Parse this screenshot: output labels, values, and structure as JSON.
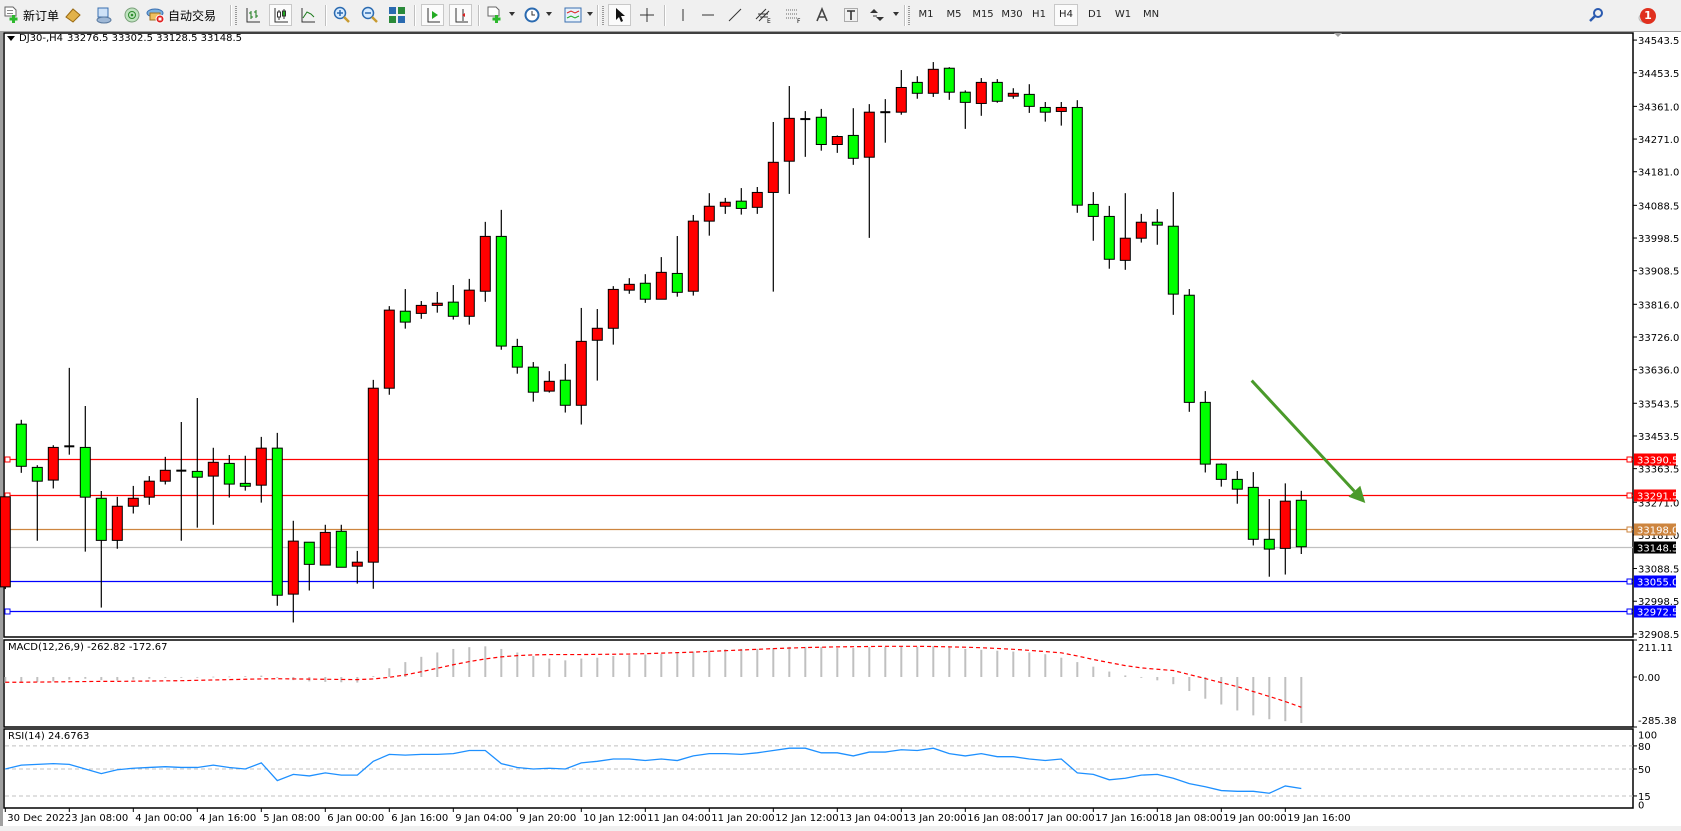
{
  "toolbar": {
    "new_order_label": "新订单",
    "autotrading_label": "自动交易",
    "timeframes": [
      "M1",
      "M5",
      "M15",
      "M30",
      "H1",
      "H4",
      "D1",
      "W1",
      "MN"
    ],
    "active_timeframe": "H4",
    "notification_count": "1",
    "icons": [
      "new-order-icon",
      "market-watch-icon",
      "navigator-icon",
      "signals-icon",
      "autotrading-icon",
      "bar-chart-icon",
      "candlestick-icon",
      "line-chart-icon",
      "zoom-in-icon",
      "zoom-out-icon",
      "tile-windows-icon",
      "autoscroll-icon",
      "chart-shift-icon",
      "indicators-icon",
      "periods-icon",
      "templates-icon",
      "cursor-icon",
      "crosshair-icon",
      "vertical-line-icon",
      "horizontal-line-icon",
      "trendline-icon",
      "equidistant-channel-icon",
      "fibonacci-icon",
      "text-icon",
      "text-label-icon",
      "arrows-icon",
      "search-icon",
      "notifications-icon"
    ]
  },
  "chart": {
    "symbol_header": "DJ30-,H4",
    "ohlc_header": "33276.5 33302.5 33128.5 33148.5"
  },
  "colors": {
    "up_candle": "#ff0000",
    "down_candle": "#00ff00",
    "resistance_line": "#ff0000",
    "mid_line": "#cd853f",
    "bid_line": "#c0c0c0",
    "support_line": "#0000ff",
    "macd_histogram": "#c0c0c0",
    "macd_signal": "#ff0000",
    "rsi_line": "#1e90ff",
    "arrow": "#4a9a2a"
  },
  "chart_data": [
    {
      "type": "candlestick",
      "title": "DJ30-,H4",
      "ylim": [
        32900,
        34563
      ],
      "y_ticks": [
        "34543.5",
        "34453.5",
        "34361.0",
        "34271.0",
        "34181.0",
        "34088.5",
        "33998.5",
        "33908.5",
        "33816.0",
        "33726.0",
        "33636.0",
        "33543.5",
        "33453.5",
        "33363.5",
        "33271.0",
        "33181.0",
        "33088.5",
        "32998.5",
        "32908.5"
      ],
      "x_ticks": [
        {
          "label": "30 Dec 2022",
          "bar": 0
        },
        {
          "label": "3 Jan 08:00",
          "bar": 4
        },
        {
          "label": "4 Jan 00:00",
          "bar": 8
        },
        {
          "label": "4 Jan 16:00",
          "bar": 12
        },
        {
          "label": "5 Jan 08:00",
          "bar": 16
        },
        {
          "label": "6 Jan 00:00",
          "bar": 20
        },
        {
          "label": "6 Jan 16:00",
          "bar": 24
        },
        {
          "label": "9 Jan 04:00",
          "bar": 28
        },
        {
          "label": "9 Jan 20:00",
          "bar": 32
        },
        {
          "label": "10 Jan 12:00",
          "bar": 36
        },
        {
          "label": "11 Jan 04:00",
          "bar": 40
        },
        {
          "label": "11 Jan 20:00",
          "bar": 44
        },
        {
          "label": "12 Jan 12:00",
          "bar": 48
        },
        {
          "label": "13 Jan 04:00",
          "bar": 52
        },
        {
          "label": "13 Jan 20:00",
          "bar": 56
        },
        {
          "label": "16 Jan 08:00",
          "bar": 60
        },
        {
          "label": "17 Jan 00:00",
          "bar": 64
        },
        {
          "label": "17 Jan 16:00",
          "bar": 68
        },
        {
          "label": "18 Jan 08:00",
          "bar": 72
        },
        {
          "label": "19 Jan 00:00",
          "bar": 76
        },
        {
          "label": "19 Jan 16:00",
          "bar": 80
        }
      ],
      "ohlc": [
        [
          33038,
          33286,
          33032,
          33286
        ],
        [
          33486,
          33498,
          33352,
          33370
        ],
        [
          33367,
          33373,
          33165,
          33329
        ],
        [
          33332,
          33428,
          33309,
          33422
        ],
        [
          33425,
          33641,
          33402,
          33425
        ],
        [
          33422,
          33536,
          33135,
          33285
        ],
        [
          33282,
          33302,
          32981,
          33166
        ],
        [
          33166,
          33286,
          33143,
          33260
        ],
        [
          33260,
          33316,
          33240,
          33282
        ],
        [
          33285,
          33343,
          33264,
          33329
        ],
        [
          33329,
          33396,
          33320,
          33359
        ],
        [
          33358,
          33492,
          33165,
          33358
        ],
        [
          33356,
          33558,
          33201,
          33340
        ],
        [
          33343,
          33421,
          33209,
          33381
        ],
        [
          33378,
          33401,
          33284,
          33321
        ],
        [
          33323,
          33399,
          33303,
          33315
        ],
        [
          33318,
          33451,
          33270,
          33420
        ],
        [
          33420,
          33462,
          32986,
          33015
        ],
        [
          33018,
          33220,
          32940,
          33164
        ],
        [
          33161,
          33161,
          33028,
          33100
        ],
        [
          33098,
          33209,
          33098,
          33188
        ],
        [
          33191,
          33209,
          33092,
          33092
        ],
        [
          33095,
          33137,
          33047,
          33106
        ],
        [
          33106,
          33608,
          33033,
          33585
        ],
        [
          33585,
          33811,
          33567,
          33800
        ],
        [
          33797,
          33858,
          33749,
          33767
        ],
        [
          33791,
          33825,
          33776,
          33813
        ],
        [
          33813,
          33850,
          33793,
          33819
        ],
        [
          33822,
          33869,
          33774,
          33783
        ],
        [
          33783,
          33886,
          33760,
          33855
        ],
        [
          33852,
          34043,
          33823,
          34003
        ],
        [
          34003,
          34076,
          33691,
          33701
        ],
        [
          33700,
          33721,
          33625,
          33643
        ],
        [
          33643,
          33657,
          33548,
          33574
        ],
        [
          33577,
          33632,
          33573,
          33604
        ],
        [
          33607,
          33652,
          33518,
          33538
        ],
        [
          33538,
          33806,
          33485,
          33714
        ],
        [
          33717,
          33803,
          33606,
          33750
        ],
        [
          33750,
          33866,
          33705,
          33857
        ],
        [
          33855,
          33888,
          33845,
          33871
        ],
        [
          33874,
          33899,
          33820,
          33830
        ],
        [
          33830,
          33946,
          33830,
          33904
        ],
        [
          33901,
          34004,
          33837,
          33849
        ],
        [
          33852,
          34062,
          33840,
          34045
        ],
        [
          34045,
          34122,
          34005,
          34086
        ],
        [
          34086,
          34109,
          34065,
          34097
        ],
        [
          34100,
          34136,
          34063,
          34080
        ],
        [
          34083,
          34139,
          34065,
          34124
        ],
        [
          34124,
          34318,
          33851,
          34207
        ],
        [
          34210,
          34417,
          34120,
          34328
        ],
        [
          34326,
          34348,
          34222,
          34326
        ],
        [
          34331,
          34354,
          34239,
          34256
        ],
        [
          34256,
          34281,
          34233,
          34278
        ],
        [
          34281,
          34356,
          34200,
          34218
        ],
        [
          34221,
          34367,
          33999,
          34345
        ],
        [
          34345,
          34381,
          34261,
          34345
        ],
        [
          34345,
          34461,
          34338,
          34413
        ],
        [
          34427,
          34444,
          34382,
          34397
        ],
        [
          34397,
          34483,
          34387,
          34463
        ],
        [
          34466,
          34469,
          34379,
          34400
        ],
        [
          34400,
          34405,
          34299,
          34372
        ],
        [
          34369,
          34439,
          34335,
          34427
        ],
        [
          34427,
          34436,
          34371,
          34375
        ],
        [
          34389,
          34411,
          34382,
          34397
        ],
        [
          34394,
          34422,
          34343,
          34361
        ],
        [
          34358,
          34373,
          34319,
          34345
        ],
        [
          34347,
          34373,
          34308,
          34358
        ],
        [
          34358,
          34378,
          34068,
          34089
        ],
        [
          34091,
          34125,
          33991,
          34058
        ],
        [
          34058,
          34087,
          33914,
          33940
        ],
        [
          33937,
          34122,
          33911,
          33998
        ],
        [
          33998,
          34065,
          33986,
          34042
        ],
        [
          34042,
          34078,
          33980,
          34034
        ],
        [
          34031,
          34125,
          33787,
          33844
        ],
        [
          33841,
          33858,
          33520,
          33546
        ],
        [
          33546,
          33577,
          33353,
          33376
        ],
        [
          33376,
          33378,
          33314,
          33334
        ],
        [
          33334,
          33357,
          33267,
          33307
        ],
        [
          33312,
          33354,
          33152,
          33169
        ],
        [
          33169,
          33280,
          33066,
          33142
        ],
        [
          33144,
          33323,
          33072,
          33274
        ],
        [
          33276.5,
          33302.5,
          33128.5,
          33148.5
        ]
      ],
      "horizontal_lines": [
        {
          "label": "33390.5",
          "value": 33390.5,
          "color": "#ff0000",
          "text_color": "#ffffff",
          "markers": true
        },
        {
          "label": "33291.5",
          "value": 33291.5,
          "color": "#ff0000",
          "text_color": "#ffffff",
          "markers": true
        },
        {
          "label": "33198.0",
          "value": 33198.0,
          "color": "#cd853f",
          "text_color": "#ffffff",
          "markers": true
        },
        {
          "label": "33148.5",
          "value": 33148.5,
          "color": "#c0c0c0",
          "label_bg": "#000000",
          "text_color": "#ffffff",
          "markers": false
        },
        {
          "label": "33055.0",
          "value": 33055.0,
          "color": "#0000ff",
          "text_color": "#ffffff",
          "markers": true
        },
        {
          "label": "32972.5",
          "value": 32972.5,
          "color": "#0000ff",
          "text_color": "#ffffff",
          "markers": true
        }
      ],
      "annotations": [
        {
          "type": "arrow",
          "from": {
            "bar": 77.9,
            "price": 33606
          },
          "to": {
            "bar": 85,
            "price": 33269
          },
          "color": "#4a9a2a"
        }
      ]
    },
    {
      "type": "bar",
      "label": "MACD(12,26,9) -262.82 -172.67",
      "ylim": [
        -285.38,
        211.11
      ],
      "y_ticks": [
        "211.11",
        "0.00",
        "-285.38"
      ],
      "main": [
        -35,
        -30,
        -28,
        -25,
        -15,
        -10,
        -18,
        -20,
        -15,
        -10,
        -5,
        -2,
        0,
        2,
        3,
        5,
        8,
        -5,
        -18,
        -25,
        -28,
        -30,
        -32,
        5,
        50,
        85,
        115,
        140,
        160,
        170,
        175,
        160,
        140,
        120,
        105,
        95,
        105,
        110,
        120,
        125,
        128,
        132,
        138,
        145,
        150,
        158,
        160,
        160,
        165,
        172,
        172,
        170,
        165,
        165,
        170,
        172,
        175,
        172,
        175,
        170,
        160,
        155,
        150,
        145,
        140,
        130,
        110,
        85,
        59,
        31,
        9,
        -1,
        -19,
        -41,
        -80,
        -124,
        -157,
        -191,
        -219,
        -241,
        -252,
        -262.82
      ],
      "signal": [
        -30,
        -30,
        -29,
        -28,
        -27,
        -26,
        -25,
        -25,
        -24,
        -23,
        -22,
        -21,
        -19,
        -17,
        -15,
        -13,
        -11,
        -10,
        -11,
        -12,
        -13,
        -14,
        -15,
        -11,
        -2,
        12,
        30,
        50,
        70,
        88,
        103,
        115,
        122,
        126,
        128,
        128,
        128,
        129,
        130,
        131,
        133,
        136,
        139,
        142,
        146,
        150,
        154,
        158,
        162,
        165,
        168,
        170,
        172,
        173,
        174,
        175,
        175,
        175,
        174,
        172,
        170,
        167,
        163,
        158,
        152,
        145,
        138,
        120,
        100,
        82,
        65,
        52,
        44,
        37,
        14,
        -9,
        -32,
        -55,
        -83,
        -111,
        -140,
        -172.67
      ]
    },
    {
      "type": "line",
      "label": "RSI(14) 24.6763",
      "ylim": [
        0,
        100
      ],
      "y_ticks": [
        "100",
        "80",
        "50",
        "15",
        "0"
      ],
      "levels": [
        80,
        50,
        15
      ],
      "values": [
        50,
        55,
        56,
        57,
        56,
        50,
        44,
        49,
        51,
        52,
        53,
        52,
        52,
        55,
        52,
        50,
        58,
        35,
        43,
        41,
        45,
        42,
        42,
        60,
        69,
        68,
        69,
        69,
        70,
        74,
        74,
        57,
        52,
        50,
        51,
        50,
        58,
        60,
        63,
        63,
        61,
        63,
        61,
        67,
        70,
        70,
        69,
        71,
        74,
        77,
        77,
        71,
        71,
        67,
        72,
        72,
        75,
        74,
        77,
        70,
        67,
        70,
        66,
        66,
        63,
        61,
        63,
        45,
        43,
        36,
        38,
        42,
        43,
        38,
        31,
        27,
        22,
        21,
        21,
        18.5,
        28,
        24.6763
      ]
    }
  ]
}
